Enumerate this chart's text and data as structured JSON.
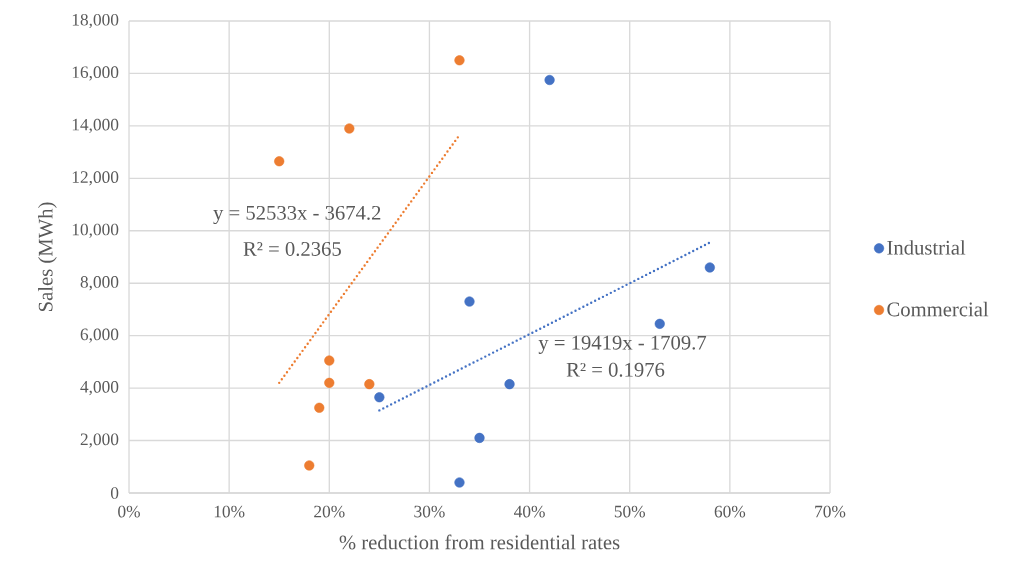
{
  "chart_data": {
    "type": "scatter",
    "xlabel": "% reduction from residential rates",
    "ylabel": "Sales (MWh)",
    "xlim": [
      0,
      0.7
    ],
    "ylim": [
      0,
      18000
    ],
    "xticks": [
      {
        "value": 0,
        "label": "0%"
      },
      {
        "value": 0.1,
        "label": "10%"
      },
      {
        "value": 0.2,
        "label": "20%"
      },
      {
        "value": 0.3,
        "label": "30%"
      },
      {
        "value": 0.4,
        "label": "40%"
      },
      {
        "value": 0.5,
        "label": "50%"
      },
      {
        "value": 0.6,
        "label": "60%"
      },
      {
        "value": 0.7,
        "label": "70%"
      }
    ],
    "yticks": [
      {
        "value": 0,
        "label": "0"
      },
      {
        "value": 2000,
        "label": "2,000"
      },
      {
        "value": 4000,
        "label": "4,000"
      },
      {
        "value": 6000,
        "label": "6,000"
      },
      {
        "value": 8000,
        "label": "8,000"
      },
      {
        "value": 10000,
        "label": "10,000"
      },
      {
        "value": 12000,
        "label": "12,000"
      },
      {
        "value": 14000,
        "label": "14,000"
      },
      {
        "value": 16000,
        "label": "16,000"
      },
      {
        "value": 18000,
        "label": "18,000"
      }
    ],
    "grid": true,
    "legend": "right",
    "marker": "circle",
    "series": [
      {
        "name": "Industrial",
        "color": "#4472c4",
        "x": [
          0.25,
          0.33,
          0.34,
          0.35,
          0.38,
          0.42,
          0.53,
          0.58
        ],
        "values": [
          3650,
          400,
          7300,
          2100,
          4150,
          15750,
          6450,
          8600
        ]
      },
      {
        "name": "Commercial",
        "color": "#ed7d31",
        "x": [
          0.15,
          0.18,
          0.19,
          0.2,
          0.2,
          0.22,
          0.24,
          0.33
        ],
        "values": [
          12650,
          1050,
          3250,
          5050,
          4200,
          13900,
          4150,
          16500
        ]
      },
      {
        "type": "line",
        "color": "#4472c4",
        "line_style": "dotted",
        "marker": "none",
        "x": [
          0.25,
          0.58
        ],
        "values": [
          3150,
          9550
        ]
      },
      {
        "type": "line",
        "color": "#ed7d31",
        "line_style": "dotted",
        "marker": "none",
        "x": [
          0.15,
          0.33
        ],
        "values": [
          4200,
          13650
        ]
      }
    ],
    "annotations": [
      "y = 52533x - 3674.2",
      "R² = 0.2365",
      "y = 19419x - 1709.7",
      "R² = 0.1976"
    ]
  }
}
